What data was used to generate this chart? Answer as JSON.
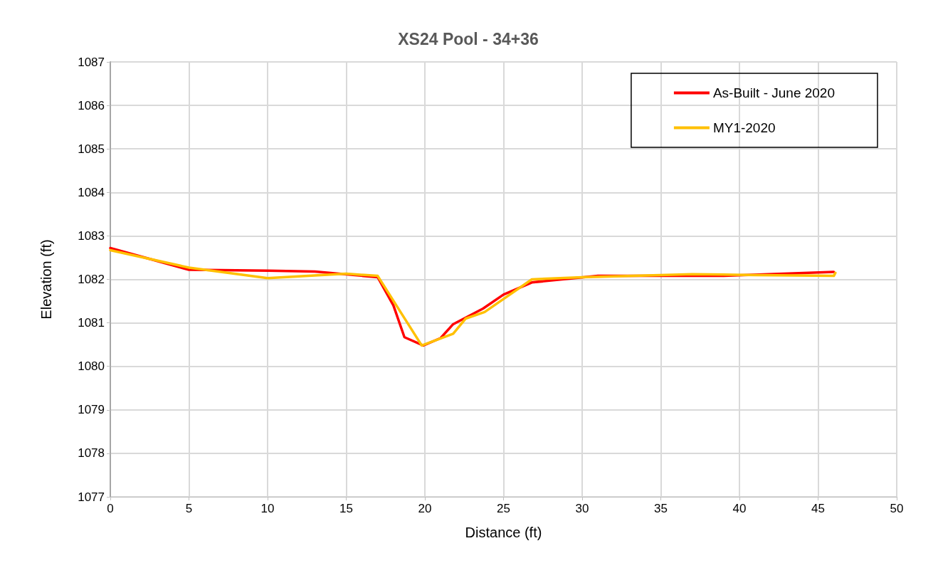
{
  "chart_data": {
    "type": "line",
    "title": "XS24 Pool - 34+36",
    "xlabel": "Distance (ft)",
    "ylabel": "Elevation (ft)",
    "xlim": [
      0,
      50
    ],
    "xticks": [
      0,
      5,
      10,
      15,
      20,
      25,
      30,
      35,
      40,
      45,
      50
    ],
    "ylim": [
      1077,
      1087
    ],
    "yticks": [
      1077,
      1078,
      1079,
      1080,
      1081,
      1082,
      1083,
      1084,
      1085,
      1086,
      1087
    ],
    "grid": true,
    "legend": "top right",
    "marker": "none",
    "line_style": "solid",
    "series": [
      {
        "name": "As-Built - June 2020",
        "color": "#ff0000",
        "x": [
          0,
          5,
          10,
          13,
          17,
          18,
          18.7,
          19.9,
          21,
          21.8,
          23.7,
          25,
          26.8,
          31,
          37,
          39,
          46
        ],
        "values": [
          1082.72,
          1082.22,
          1082.2,
          1082.18,
          1082.05,
          1081.4,
          1080.67,
          1080.48,
          1080.65,
          1080.97,
          1081.33,
          1081.65,
          1081.93,
          1082.08,
          1082.08,
          1082.08,
          1082.17
        ]
      },
      {
        "name": "MY1-2020",
        "color": "#ffc000",
        "x": [
          0,
          5,
          10,
          15,
          17,
          19.8,
          21.8,
          22.6,
          23.8,
          26.8,
          30,
          37,
          41,
          46,
          46.1
        ],
        "values": [
          1082.67,
          1082.27,
          1082.03,
          1082.13,
          1082.08,
          1080.48,
          1080.75,
          1081.1,
          1081.25,
          1082,
          1082.05,
          1082.12,
          1082.1,
          1082.08,
          1082.15
        ]
      }
    ]
  }
}
